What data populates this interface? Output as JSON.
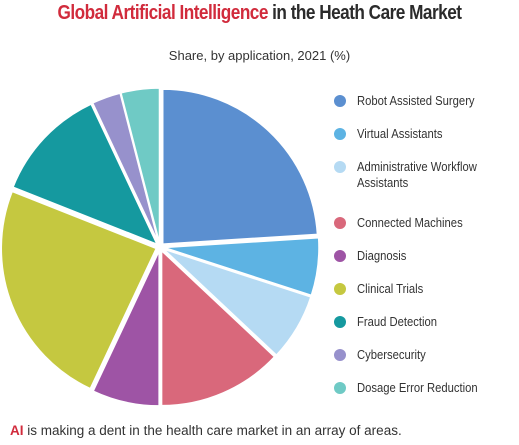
{
  "header": {
    "title_highlight": "Global Artificial Intelligence",
    "title_rest": " in the Heath Care Market",
    "subtitle": "Share, by application, 2021 (%)"
  },
  "caption": {
    "lead": "AI",
    "rest": " is making a dent in the health care market in an array of areas."
  },
  "chart_data": {
    "type": "pie",
    "title": "Global Artificial Intelligence in the Heath Care Market",
    "subtitle": "Share, by application, 2021 (%)",
    "legend_position": "right",
    "start_angle_deg": 0,
    "direction": "clockwise",
    "exploded": true,
    "slices": [
      {
        "label": "Robot Assisted Surgery",
        "value": 24,
        "color": "#5b8fd0"
      },
      {
        "label": "Virtual Assistants",
        "value": 6,
        "color": "#5db3e3"
      },
      {
        "label": "Administrative Workflow Assistants",
        "value": 7,
        "color": "#b5daf3"
      },
      {
        "label": "Connected Machines",
        "value": 13,
        "color": "#d9687b"
      },
      {
        "label": "Diagnosis",
        "value": 7,
        "color": "#9e54a5"
      },
      {
        "label": "Clinical Trials",
        "value": 24,
        "color": "#c5c840"
      },
      {
        "label": "Fraud Detection",
        "value": 12,
        "color": "#15999f"
      },
      {
        "label": "Cybersecurity",
        "value": 3,
        "color": "#9791cc"
      },
      {
        "label": "Dosage Error Reduction",
        "value": 4,
        "color": "#6fcac5"
      }
    ]
  }
}
